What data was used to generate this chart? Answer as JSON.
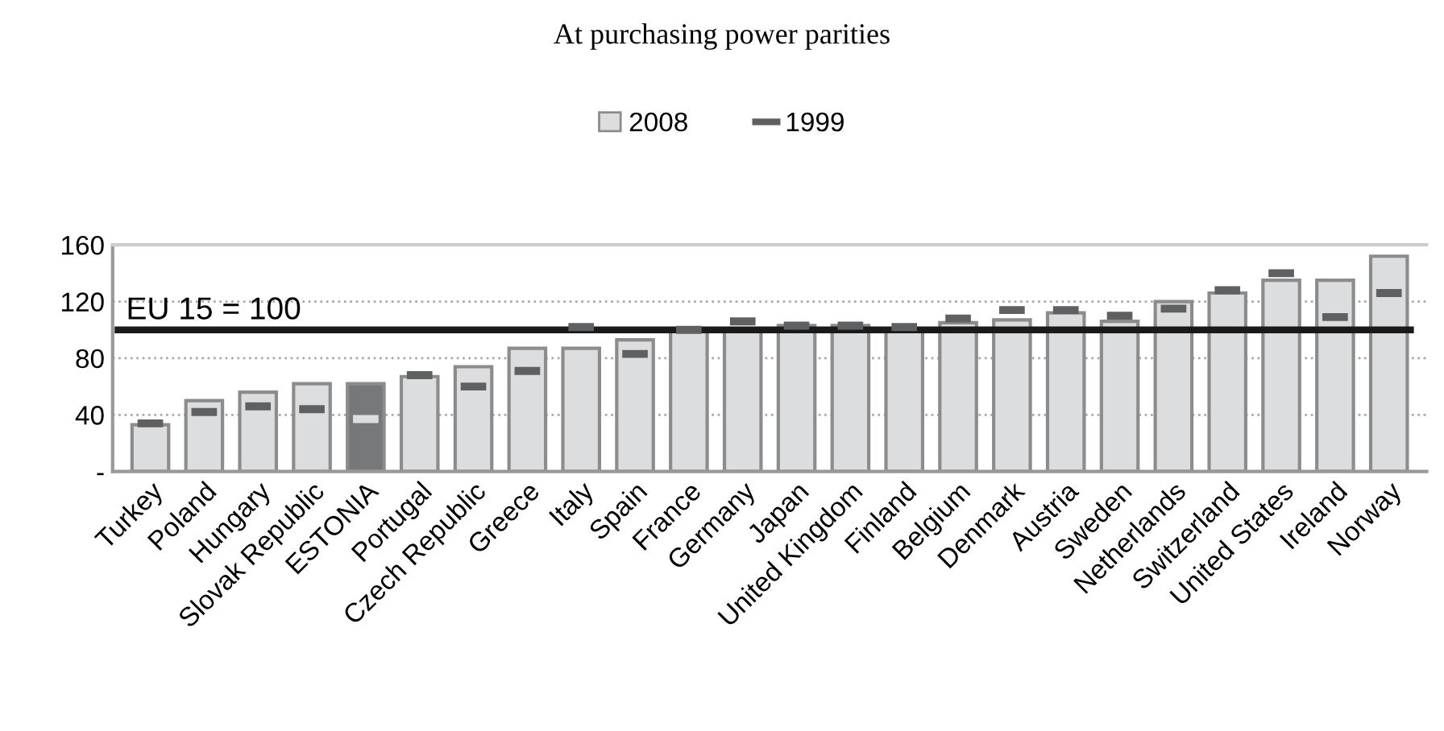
{
  "chart_data": {
    "type": "bar",
    "title": "At purchasing power parities",
    "categories": [
      "Turkey",
      "Poland",
      "Hungary",
      "Slovak Republic",
      "ESTONIA",
      "Portugal",
      "Czech Republic",
      "Greece",
      "Italy",
      "Spain",
      "France",
      "Germany",
      "Japan",
      "United Kingdom",
      "Finland",
      "Belgium",
      "Denmark",
      "Austria",
      "Sweden",
      "Netherlands",
      "Switzerland",
      "United States",
      "Ireland",
      "Norway"
    ],
    "series": [
      {
        "name": "2008",
        "color": "#dcdddf",
        "colors": [
          "#dcdddf",
          "#dcdddf",
          "#dcdddf",
          "#dcdddf",
          "#77787a",
          "#dcdddf",
          "#dcdddf",
          "#dcdddf",
          "#dcdddf",
          "#dcdddf",
          "#dcdddf",
          "#dcdddf",
          "#dcdddf",
          "#dcdddf",
          "#dcdddf",
          "#dcdddf",
          "#dcdddf",
          "#dcdddf",
          "#dcdddf",
          "#dcdddf",
          "#dcdddf",
          "#dcdddf",
          "#dcdddf",
          "#dcdddf"
        ],
        "values": [
          33,
          50,
          56,
          62,
          62,
          67,
          74,
          87,
          87,
          93,
          99,
          101,
          103,
          103,
          101,
          105,
          107,
          112,
          106,
          120,
          126,
          135,
          135,
          152
        ]
      },
      {
        "name": "1999",
        "type": "scatter",
        "color": "#5f6062",
        "colors": [
          "#5f6062",
          "#5f6062",
          "#5f6062",
          "#5f6062",
          "#dcdddf",
          "#5f6062",
          "#5f6062",
          "#5f6062",
          "#5f6062",
          "#5f6062",
          "#5f6062",
          "#5f6062",
          "#5f6062",
          "#5f6062",
          "#5f6062",
          "#5f6062",
          "#5f6062",
          "#5f6062",
          "#5f6062",
          "#5f6062",
          "#5f6062",
          "#5f6062",
          "#5f6062",
          "#5f6062"
        ],
        "values": [
          34,
          42,
          46,
          44,
          37,
          68,
          60,
          71,
          102,
          83,
          100,
          106,
          103,
          103,
          102,
          108,
          114,
          114,
          110,
          115,
          128,
          140,
          109,
          126
        ]
      }
    ],
    "ylim": [
      0,
      160
    ],
    "yticks": [
      {
        "value": 0,
        "label": "-"
      },
      40,
      80,
      120,
      160
    ],
    "ref_lines": [
      {
        "axis": "y",
        "value": 100,
        "label": "EU 15 = 100",
        "color": "#1a1a1a"
      }
    ],
    "grid": "y",
    "legend": "top"
  }
}
